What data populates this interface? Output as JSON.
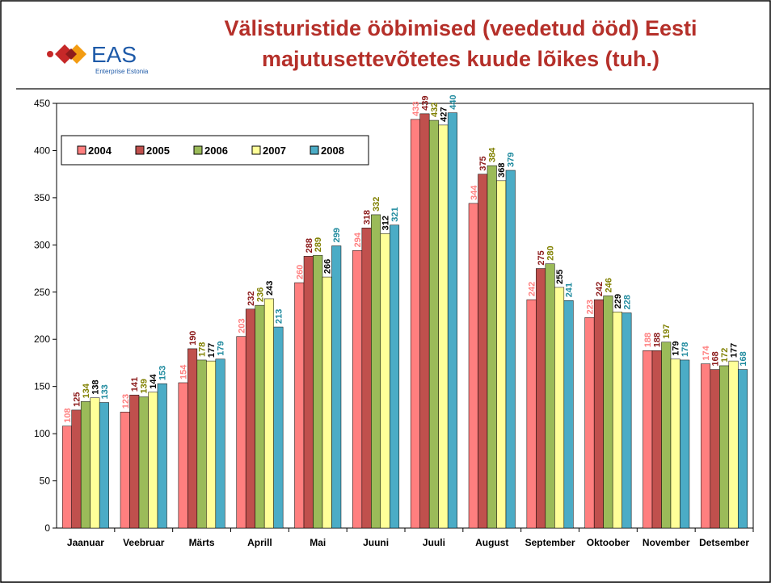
{
  "logo": {
    "name": "EAS",
    "subtitle": "Enterprise Estonia"
  },
  "chart_data": {
    "type": "bar",
    "title": [
      "Välisturistide ööbimised (veedetud ööd) Eesti",
      "majutusettevõtetes kuude lõikes (tuh.)"
    ],
    "categories": [
      "Jaanuar",
      "Veebruar",
      "Märts",
      "Aprill",
      "Mai",
      "Juuni",
      "Juuli",
      "August",
      "September",
      "Oktoober",
      "November",
      "Detsember"
    ],
    "series": [
      {
        "name": "2004",
        "color": "#ff7f7f",
        "label_color": "#ff7f7f",
        "values": [
          108,
          123,
          154,
          203,
          260,
          294,
          433,
          344,
          242,
          223,
          188,
          174
        ]
      },
      {
        "name": "2005",
        "color": "#c0504d",
        "label_color": "#8b1a1a",
        "values": [
          125,
          141,
          190,
          232,
          288,
          318,
          439,
          375,
          275,
          242,
          188,
          168
        ]
      },
      {
        "name": "2006",
        "color": "#9bbb59",
        "label_color": "#808000",
        "values": [
          134,
          139,
          178,
          236,
          289,
          332,
          432,
          384,
          280,
          246,
          197,
          172
        ]
      },
      {
        "name": "2007",
        "color": "#ffff99",
        "label_color": "#000000",
        "values": [
          138,
          144,
          177,
          243,
          266,
          312,
          427,
          368,
          255,
          229,
          179,
          177
        ]
      },
      {
        "name": "2008",
        "color": "#4bacc6",
        "label_color": "#1f8a9e",
        "values": [
          133,
          153,
          179,
          213,
          299,
          321,
          440,
          379,
          241,
          228,
          178,
          168
        ]
      }
    ],
    "ylim": [
      0,
      450
    ],
    "yticks": [
      0,
      50,
      100,
      150,
      200,
      250,
      300,
      350,
      400,
      450
    ],
    "grid": false,
    "legend": "top-left",
    "data_labels": true
  }
}
